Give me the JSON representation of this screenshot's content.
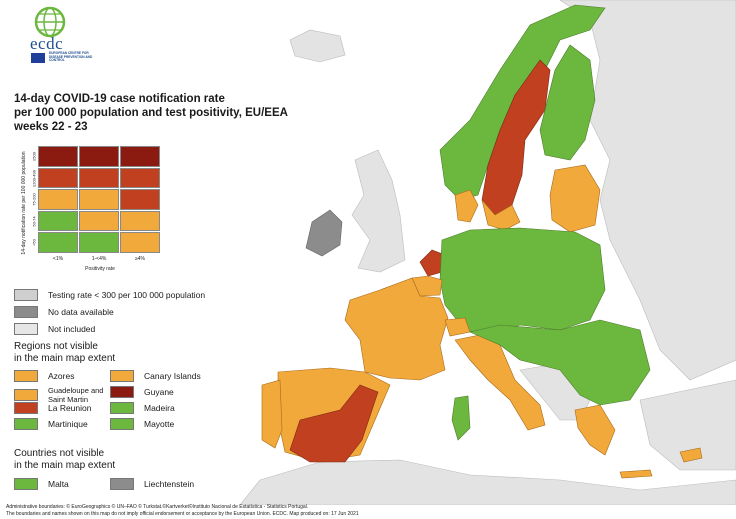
{
  "logo": {
    "name": "ecdc",
    "subtitle": "EUROPEAN CENTRE FOR DISEASE PREVENTION AND CONTROL"
  },
  "title": {
    "line1": "14-day COVID-19 case notification rate",
    "line2": "per 100 000 population and test positivity, EU/EEA",
    "line3": "weeks 22 - 23"
  },
  "colors": {
    "dark_red": "#8b1a10",
    "red": "#c0401f",
    "orange": "#f2a93b",
    "green": "#6cb73e",
    "grey_testing": "#cfcfcf",
    "grey_nodata": "#8c8c8c",
    "grey_notincluded": "#e6e6e6",
    "sea": "#ffffff",
    "nonincluded_land": "#e3e3e3"
  },
  "matrix": {
    "y_axis_label": "14-day notification rate per 100 000 population",
    "x_axis_label": "Positivity rate",
    "y_ticks": [
      "≥500",
      "≥200-499",
      "75-200",
      "50-74",
      "<50"
    ],
    "x_ticks": [
      "<1%",
      "1-<4%",
      "≥4%"
    ],
    "cells": [
      [
        "dark_red",
        "dark_red",
        "dark_red"
      ],
      [
        "red",
        "red",
        "red"
      ],
      [
        "orange",
        "orange",
        "red"
      ],
      [
        "green",
        "orange",
        "orange"
      ],
      [
        "green",
        "green",
        "orange"
      ]
    ]
  },
  "legend": {
    "testing_rate": "Testing rate < 300 per 100 000 population",
    "no_data": "No data available",
    "not_included": "Not included"
  },
  "regions": {
    "heading_line1": "Regions not visible",
    "heading_line2": "in the main map extent",
    "items": [
      {
        "label": "Azores",
        "color": "orange"
      },
      {
        "label": "Canary Islands",
        "color": "orange"
      },
      {
        "label": "Guadeloupe and Saint Martin",
        "color": "orange"
      },
      {
        "label": "Guyane",
        "color": "dark_red"
      },
      {
        "label": "La Reunion",
        "color": "red"
      },
      {
        "label": "Madeira",
        "color": "green"
      },
      {
        "label": "Martinique",
        "color": "green"
      },
      {
        "label": "Mayotte",
        "color": "green"
      }
    ]
  },
  "countries": {
    "heading_line1": "Countries not visible",
    "heading_line2": "in the main map extent",
    "items": [
      {
        "label": "Malta",
        "color": "green"
      },
      {
        "label": "Liechtenstein",
        "color": "grey_nodata"
      }
    ]
  },
  "footer": {
    "line1": "Administrative boundaries: © EuroGeographics © UN–FAO © Turkstat.©Kartverket©Instituto Nacional de Estatística - Statistics Portugal.",
    "line2": "The boundaries and names shown on this map do not imply official endorsement or acceptance by the European Union. ECDC. Map produced on: 17 Jun 2021"
  }
}
